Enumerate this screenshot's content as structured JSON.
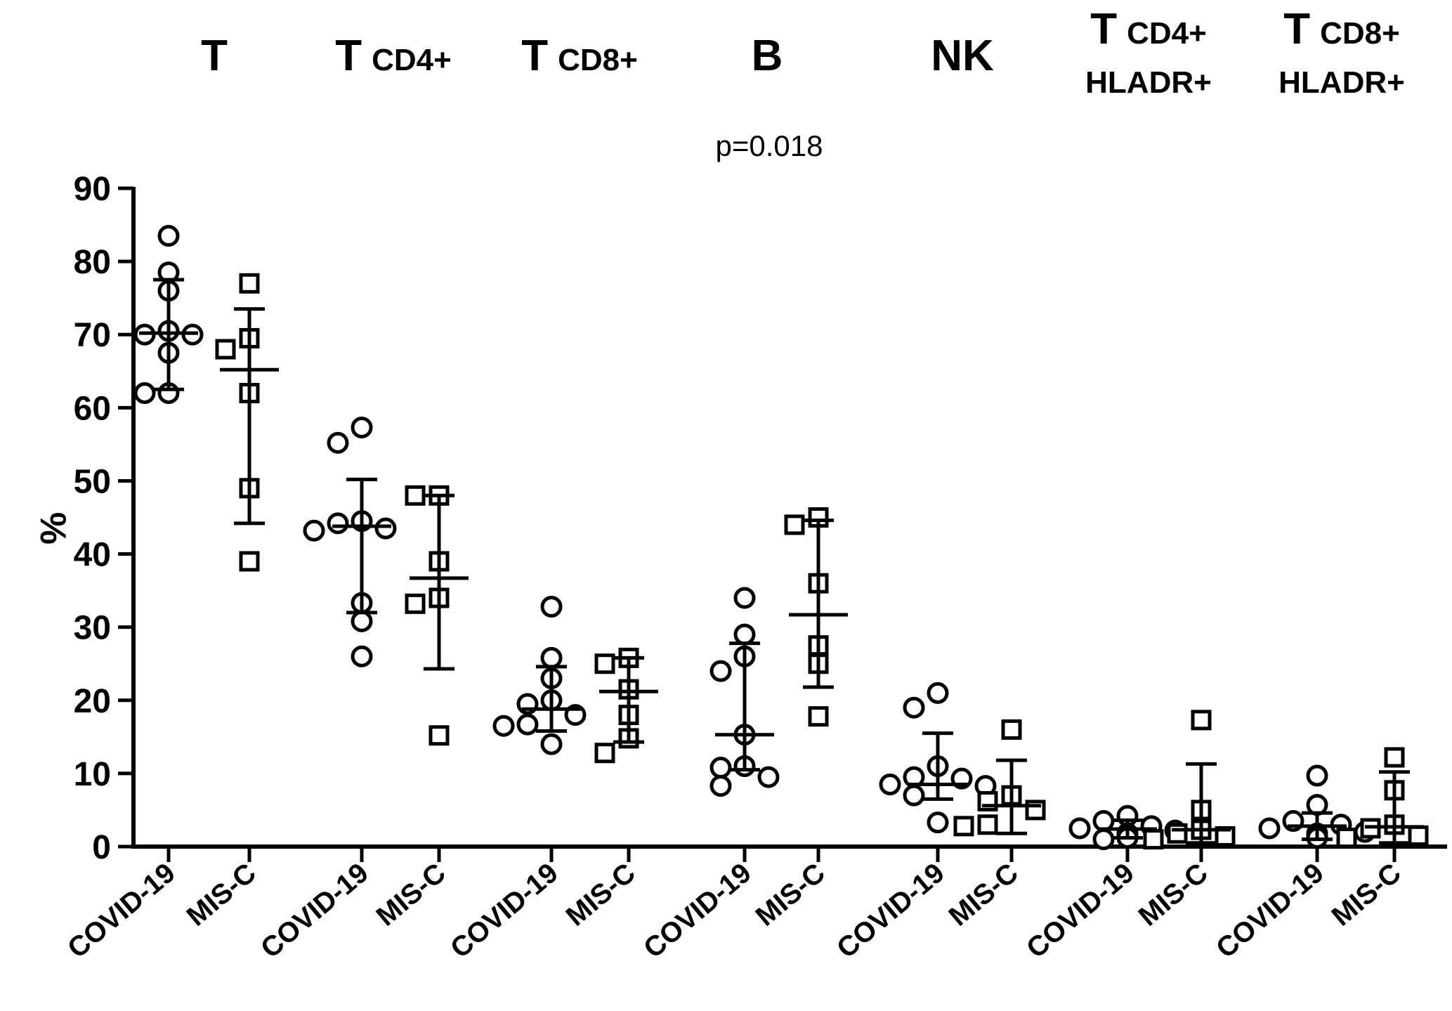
{
  "chart_data": {
    "type": "scatter",
    "title": "",
    "ylabel": "%",
    "ylim": [
      0,
      90
    ],
    "yticks": [
      0,
      10,
      20,
      30,
      40,
      50,
      60,
      70,
      80,
      90
    ],
    "annotation": "p=0.018",
    "groups": [
      {
        "header": [
          {
            "big": "T",
            "small": ""
          }
        ],
        "subgroups": [
          {
            "label": "COVID-19",
            "marker": "circle",
            "mean": 70.2,
            "sd_low": 62.5,
            "sd_high": 77.5,
            "points": [
              83.5,
              78.5,
              76,
              70.5,
              70,
              70,
              67.5,
              62,
              62
            ]
          },
          {
            "label": "MIS-C",
            "marker": "square",
            "mean": 65.2,
            "sd_low": 44.2,
            "sd_high": 73.5,
            "points": [
              77,
              69.5,
              68,
              62,
              49,
              39
            ]
          }
        ]
      },
      {
        "header": [
          {
            "big": "T",
            "small": "CD4+"
          }
        ],
        "subgroups": [
          {
            "label": "COVID-19",
            "marker": "circle",
            "mean": 43.8,
            "sd_low": 32,
            "sd_high": 50.2,
            "points": [
              57.3,
              55.2,
              44.5,
              44.2,
              43.5,
              43.2,
              33.3,
              30.8,
              26
            ]
          },
          {
            "label": "MIS-C",
            "marker": "square",
            "mean": 36.7,
            "sd_low": 24.3,
            "sd_high": 48,
            "points": [
              48,
              48,
              39,
              34,
              33.2,
              15.2
            ]
          }
        ]
      },
      {
        "header": [
          {
            "big": "T",
            "small": "CD8+"
          }
        ],
        "subgroups": [
          {
            "label": "COVID-19",
            "marker": "circle",
            "mean": 18.8,
            "sd_low": 15.8,
            "sd_high": 24.6,
            "points": [
              32.8,
              25.8,
              23,
              20,
              19.5,
              18,
              16.7,
              16.5,
              14
            ]
          },
          {
            "label": "MIS-C",
            "marker": "square",
            "mean": 21.2,
            "sd_low": 14.3,
            "sd_high": 25.8,
            "points": [
              25.8,
              25,
              21.5,
              18,
              14.8,
              12.8
            ]
          }
        ]
      },
      {
        "header": [
          {
            "big": "B",
            "small": ""
          }
        ],
        "subgroups": [
          {
            "label": "COVID-19",
            "marker": "circle",
            "mean": 15.3,
            "sd_low": 10.5,
            "sd_high": 27.8,
            "points": [
              34,
              29,
              26,
              24,
              15.3,
              11,
              10.8,
              9.5,
              8.3
            ]
          },
          {
            "label": "MIS-C",
            "marker": "square",
            "mean": 31.7,
            "sd_low": 21.8,
            "sd_high": 44.6,
            "points": [
              45,
              44,
              36,
              27.5,
              25,
              17.8
            ]
          }
        ]
      },
      {
        "header": [
          {
            "big": "NK",
            "small": ""
          }
        ],
        "subgroups": [
          {
            "label": "COVID-19",
            "marker": "circle",
            "mean": 8.5,
            "sd_low": 6.5,
            "sd_high": 15.5,
            "points": [
              21,
              19,
              11,
              9.5,
              9.3,
              8.5,
              8.3,
              7,
              3.3
            ]
          },
          {
            "label": "MIS-C",
            "marker": "square",
            "mean": 5.6,
            "sd_low": 1.8,
            "sd_high": 11.8,
            "points": [
              16,
              7,
              6.2,
              5,
              3,
              2.8
            ]
          }
        ]
      },
      {
        "header": [
          {
            "big": "T",
            "small": "CD4+"
          },
          {
            "big": "",
            "small": "HLADR+"
          }
        ],
        "subgroups": [
          {
            "label": "COVID-19",
            "marker": "circle",
            "mean": 2.4,
            "sd_low": 1.2,
            "sd_high": 3.6,
            "points": [
              4.2,
              3.5,
              2.8,
              2.5,
              2.2,
              1.8,
              1.5,
              1.2,
              1
            ]
          },
          {
            "label": "MIS-C",
            "marker": "square",
            "mean": 2.3,
            "sd_low": 0.5,
            "sd_high": 11.3,
            "points": [
              17.3,
              5,
              2.3,
              1.8,
              1.4,
              1
            ]
          }
        ]
      },
      {
        "header": [
          {
            "big": "T",
            "small": "CD8+"
          },
          {
            "big": "",
            "small": "HLADR+"
          }
        ],
        "subgroups": [
          {
            "label": "COVID-19",
            "marker": "circle",
            "mean": 2.8,
            "sd_low": 1,
            "sd_high": 4.6,
            "points": [
              9.7,
              5.7,
              3.5,
              3,
              2.5,
              2,
              1.8,
              1.5,
              1.2
            ]
          },
          {
            "label": "MIS-C",
            "marker": "square",
            "mean": 2.7,
            "sd_low": 0.5,
            "sd_high": 10.2,
            "points": [
              12.2,
              7.7,
              3,
              2.5,
              1.5,
              1.2
            ]
          }
        ]
      }
    ]
  }
}
